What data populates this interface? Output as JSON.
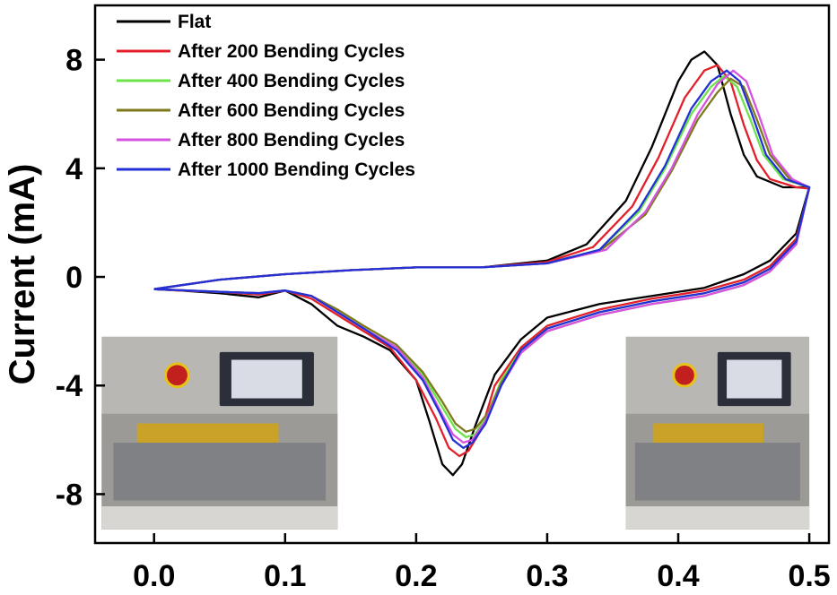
{
  "chart_data": {
    "type": "line",
    "title": "",
    "xlabel": "",
    "ylabel": "Current (mA)",
    "xlim": [
      -0.045,
      0.515
    ],
    "ylim": [
      -9.8,
      10.0
    ],
    "x_ticks": [
      0.0,
      0.1,
      0.2,
      0.3,
      0.4,
      0.5
    ],
    "x_tick_labels": [
      "0.0",
      "0.1",
      "0.2",
      "0.3",
      "0.4",
      "0.5"
    ],
    "y_ticks": [
      8,
      4,
      0,
      -4,
      -8
    ],
    "y_tick_labels": [
      "8",
      "4",
      "0",
      "-4",
      "-8"
    ],
    "grid": false,
    "legend_position": "top-left",
    "series": [
      {
        "name": "Flat",
        "color": "#000000",
        "forward": [
          [
            0.0,
            -0.45
          ],
          [
            0.05,
            -0.1
          ],
          [
            0.1,
            0.1
          ],
          [
            0.15,
            0.25
          ],
          [
            0.2,
            0.35
          ],
          [
            0.25,
            0.35
          ],
          [
            0.3,
            0.6
          ],
          [
            0.33,
            1.2
          ],
          [
            0.36,
            2.8
          ],
          [
            0.38,
            4.8
          ],
          [
            0.4,
            7.2
          ],
          [
            0.41,
            8.0
          ],
          [
            0.42,
            8.3
          ],
          [
            0.43,
            7.8
          ],
          [
            0.44,
            6.0
          ],
          [
            0.45,
            4.5
          ],
          [
            0.46,
            3.7
          ],
          [
            0.48,
            3.3
          ],
          [
            0.5,
            3.3
          ]
        ],
        "reverse": [
          [
            0.5,
            3.3
          ],
          [
            0.49,
            1.6
          ],
          [
            0.47,
            0.6
          ],
          [
            0.45,
            0.1
          ],
          [
            0.42,
            -0.4
          ],
          [
            0.38,
            -0.7
          ],
          [
            0.34,
            -1.0
          ],
          [
            0.3,
            -1.5
          ],
          [
            0.28,
            -2.3
          ],
          [
            0.26,
            -3.6
          ],
          [
            0.245,
            -5.5
          ],
          [
            0.235,
            -6.9
          ],
          [
            0.228,
            -7.3
          ],
          [
            0.22,
            -6.9
          ],
          [
            0.21,
            -5.3
          ],
          [
            0.2,
            -3.8
          ],
          [
            0.18,
            -2.7
          ],
          [
            0.16,
            -2.2
          ],
          [
            0.14,
            -1.8
          ],
          [
            0.12,
            -1.0
          ],
          [
            0.1,
            -0.5
          ],
          [
            0.08,
            -0.75
          ],
          [
            0.05,
            -0.6
          ],
          [
            0.02,
            -0.5
          ],
          [
            0.0,
            -0.45
          ]
        ]
      },
      {
        "name": "After 200 Bending Cycles",
        "color": "#e3202a",
        "forward": [
          [
            0.0,
            -0.45
          ],
          [
            0.05,
            -0.1
          ],
          [
            0.1,
            0.1
          ],
          [
            0.15,
            0.25
          ],
          [
            0.2,
            0.35
          ],
          [
            0.25,
            0.35
          ],
          [
            0.3,
            0.55
          ],
          [
            0.335,
            1.1
          ],
          [
            0.365,
            2.6
          ],
          [
            0.385,
            4.4
          ],
          [
            0.405,
            6.6
          ],
          [
            0.42,
            7.6
          ],
          [
            0.43,
            7.8
          ],
          [
            0.44,
            7.2
          ],
          [
            0.45,
            5.6
          ],
          [
            0.46,
            4.3
          ],
          [
            0.47,
            3.6
          ],
          [
            0.49,
            3.3
          ],
          [
            0.5,
            3.25
          ]
        ],
        "reverse": [
          [
            0.5,
            3.25
          ],
          [
            0.49,
            1.4
          ],
          [
            0.47,
            0.4
          ],
          [
            0.45,
            -0.1
          ],
          [
            0.42,
            -0.5
          ],
          [
            0.38,
            -0.8
          ],
          [
            0.34,
            -1.2
          ],
          [
            0.3,
            -1.8
          ],
          [
            0.28,
            -2.6
          ],
          [
            0.26,
            -4.0
          ],
          [
            0.25,
            -5.6
          ],
          [
            0.24,
            -6.4
          ],
          [
            0.233,
            -6.6
          ],
          [
            0.225,
            -6.3
          ],
          [
            0.215,
            -5.2
          ],
          [
            0.2,
            -3.8
          ],
          [
            0.18,
            -2.6
          ],
          [
            0.16,
            -2.0
          ],
          [
            0.14,
            -1.4
          ],
          [
            0.12,
            -0.8
          ],
          [
            0.1,
            -0.5
          ],
          [
            0.08,
            -0.65
          ],
          [
            0.05,
            -0.55
          ],
          [
            0.02,
            -0.5
          ],
          [
            0.0,
            -0.45
          ]
        ]
      },
      {
        "name": "After 400 Bending Cycles",
        "color": "#6ce34a",
        "forward": [
          [
            0.0,
            -0.45
          ],
          [
            0.05,
            -0.1
          ],
          [
            0.1,
            0.1
          ],
          [
            0.15,
            0.25
          ],
          [
            0.2,
            0.35
          ],
          [
            0.25,
            0.35
          ],
          [
            0.3,
            0.5
          ],
          [
            0.34,
            1.0
          ],
          [
            0.37,
            2.4
          ],
          [
            0.39,
            4.0
          ],
          [
            0.41,
            6.0
          ],
          [
            0.425,
            7.0
          ],
          [
            0.435,
            7.4
          ],
          [
            0.445,
            7.0
          ],
          [
            0.455,
            5.8
          ],
          [
            0.465,
            4.5
          ],
          [
            0.48,
            3.6
          ],
          [
            0.5,
            3.3
          ]
        ],
        "reverse": [
          [
            0.5,
            3.3
          ],
          [
            0.49,
            1.3
          ],
          [
            0.47,
            0.3
          ],
          [
            0.45,
            -0.2
          ],
          [
            0.42,
            -0.6
          ],
          [
            0.38,
            -0.9
          ],
          [
            0.34,
            -1.3
          ],
          [
            0.3,
            -1.9
          ],
          [
            0.28,
            -2.7
          ],
          [
            0.265,
            -3.8
          ],
          [
            0.255,
            -5.0
          ],
          [
            0.245,
            -5.8
          ],
          [
            0.238,
            -5.9
          ],
          [
            0.23,
            -5.6
          ],
          [
            0.22,
            -4.8
          ],
          [
            0.205,
            -3.6
          ],
          [
            0.185,
            -2.6
          ],
          [
            0.16,
            -1.9
          ],
          [
            0.14,
            -1.3
          ],
          [
            0.12,
            -0.7
          ],
          [
            0.1,
            -0.5
          ],
          [
            0.08,
            -0.6
          ],
          [
            0.05,
            -0.55
          ],
          [
            0.0,
            -0.45
          ]
        ]
      },
      {
        "name": "After 600 Bending Cycles",
        "color": "#7e7a1c",
        "forward": [
          [
            0.0,
            -0.45
          ],
          [
            0.05,
            -0.1
          ],
          [
            0.1,
            0.1
          ],
          [
            0.15,
            0.25
          ],
          [
            0.2,
            0.35
          ],
          [
            0.25,
            0.35
          ],
          [
            0.3,
            0.5
          ],
          [
            0.34,
            0.95
          ],
          [
            0.375,
            2.3
          ],
          [
            0.395,
            3.9
          ],
          [
            0.415,
            5.8
          ],
          [
            0.43,
            6.8
          ],
          [
            0.44,
            7.3
          ],
          [
            0.45,
            7.0
          ],
          [
            0.46,
            5.8
          ],
          [
            0.47,
            4.5
          ],
          [
            0.485,
            3.6
          ],
          [
            0.5,
            3.3
          ]
        ],
        "reverse": [
          [
            0.5,
            3.3
          ],
          [
            0.49,
            1.2
          ],
          [
            0.47,
            0.2
          ],
          [
            0.45,
            -0.3
          ],
          [
            0.42,
            -0.7
          ],
          [
            0.38,
            -1.0
          ],
          [
            0.34,
            -1.4
          ],
          [
            0.3,
            -2.0
          ],
          [
            0.28,
            -2.8
          ],
          [
            0.265,
            -3.9
          ],
          [
            0.255,
            -5.0
          ],
          [
            0.245,
            -5.6
          ],
          [
            0.238,
            -5.7
          ],
          [
            0.23,
            -5.4
          ],
          [
            0.22,
            -4.6
          ],
          [
            0.205,
            -3.5
          ],
          [
            0.185,
            -2.5
          ],
          [
            0.16,
            -1.8
          ],
          [
            0.14,
            -1.2
          ],
          [
            0.12,
            -0.7
          ],
          [
            0.1,
            -0.5
          ],
          [
            0.08,
            -0.6
          ],
          [
            0.05,
            -0.55
          ],
          [
            0.0,
            -0.45
          ]
        ]
      },
      {
        "name": "After 800 Bending Cycles",
        "color": "#d653e0",
        "forward": [
          [
            0.0,
            -0.45
          ],
          [
            0.05,
            -0.1
          ],
          [
            0.1,
            0.1
          ],
          [
            0.15,
            0.25
          ],
          [
            0.2,
            0.35
          ],
          [
            0.25,
            0.35
          ],
          [
            0.3,
            0.5
          ],
          [
            0.345,
            1.0
          ],
          [
            0.375,
            2.4
          ],
          [
            0.395,
            4.0
          ],
          [
            0.415,
            6.0
          ],
          [
            0.43,
            7.1
          ],
          [
            0.442,
            7.6
          ],
          [
            0.452,
            7.2
          ],
          [
            0.462,
            5.9
          ],
          [
            0.472,
            4.5
          ],
          [
            0.487,
            3.6
          ],
          [
            0.5,
            3.3
          ]
        ],
        "reverse": [
          [
            0.5,
            3.3
          ],
          [
            0.49,
            1.2
          ],
          [
            0.47,
            0.2
          ],
          [
            0.45,
            -0.3
          ],
          [
            0.42,
            -0.7
          ],
          [
            0.38,
            -1.0
          ],
          [
            0.34,
            -1.4
          ],
          [
            0.3,
            -2.0
          ],
          [
            0.28,
            -2.8
          ],
          [
            0.265,
            -4.0
          ],
          [
            0.253,
            -5.3
          ],
          [
            0.243,
            -6.0
          ],
          [
            0.236,
            -6.1
          ],
          [
            0.228,
            -5.8
          ],
          [
            0.218,
            -4.9
          ],
          [
            0.205,
            -3.7
          ],
          [
            0.185,
            -2.6
          ],
          [
            0.16,
            -1.9
          ],
          [
            0.14,
            -1.3
          ],
          [
            0.12,
            -0.7
          ],
          [
            0.1,
            -0.5
          ],
          [
            0.08,
            -0.6
          ],
          [
            0.05,
            -0.55
          ],
          [
            0.0,
            -0.45
          ]
        ]
      },
      {
        "name": "After 1000 Bending Cycles",
        "color": "#2330d6",
        "forward": [
          [
            0.0,
            -0.45
          ],
          [
            0.05,
            -0.1
          ],
          [
            0.1,
            0.1
          ],
          [
            0.15,
            0.25
          ],
          [
            0.2,
            0.35
          ],
          [
            0.25,
            0.35
          ],
          [
            0.3,
            0.5
          ],
          [
            0.34,
            1.0
          ],
          [
            0.37,
            2.5
          ],
          [
            0.39,
            4.1
          ],
          [
            0.41,
            6.2
          ],
          [
            0.425,
            7.2
          ],
          [
            0.437,
            7.6
          ],
          [
            0.447,
            7.2
          ],
          [
            0.457,
            5.9
          ],
          [
            0.467,
            4.5
          ],
          [
            0.482,
            3.6
          ],
          [
            0.5,
            3.3
          ]
        ],
        "reverse": [
          [
            0.5,
            3.3
          ],
          [
            0.49,
            1.3
          ],
          [
            0.47,
            0.3
          ],
          [
            0.45,
            -0.2
          ],
          [
            0.42,
            -0.6
          ],
          [
            0.38,
            -0.9
          ],
          [
            0.34,
            -1.3
          ],
          [
            0.3,
            -1.9
          ],
          [
            0.28,
            -2.7
          ],
          [
            0.265,
            -4.0
          ],
          [
            0.253,
            -5.4
          ],
          [
            0.243,
            -6.1
          ],
          [
            0.236,
            -6.3
          ],
          [
            0.228,
            -6.0
          ],
          [
            0.218,
            -5.0
          ],
          [
            0.205,
            -3.8
          ],
          [
            0.185,
            -2.7
          ],
          [
            0.16,
            -1.9
          ],
          [
            0.14,
            -1.3
          ],
          [
            0.12,
            -0.7
          ],
          [
            0.1,
            -0.5
          ],
          [
            0.08,
            -0.6
          ],
          [
            0.05,
            -0.55
          ],
          [
            0.0,
            -0.45
          ]
        ]
      }
    ],
    "insets": [
      {
        "name": "bending-machine-photo-left",
        "x_range": [
          -0.04,
          0.14
        ],
        "y_range": [
          -9.3,
          -2.2
        ]
      },
      {
        "name": "bending-machine-photo-right",
        "x_range": [
          0.36,
          0.5
        ],
        "y_range": [
          -9.3,
          -2.2
        ]
      }
    ]
  }
}
